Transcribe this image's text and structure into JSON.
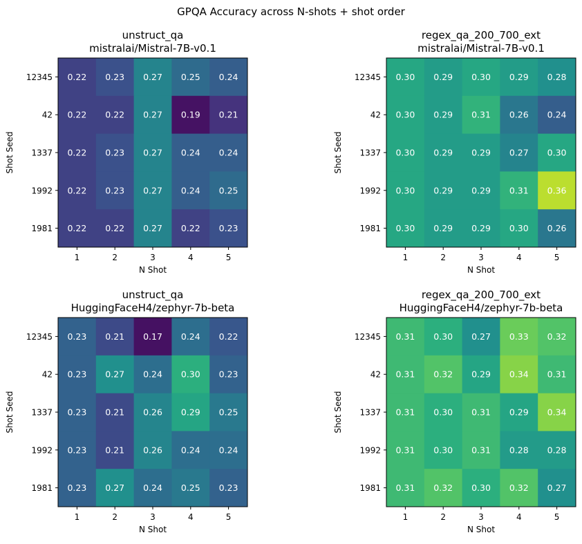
{
  "figure": {
    "title": "GPQA Accuracy across N-shots + shot order"
  },
  "colors": {
    "colormap": "viridis",
    "cell_text": "#ffffff",
    "axis": "#000000"
  },
  "chart_data": [
    {
      "type": "heatmap",
      "title_line1": "unstruct_qa",
      "title_line2": "mistralai/Mistral-7B-v0.1",
      "xlabel": "N Shot",
      "ylabel": "Shot Seed",
      "x": [
        "1",
        "2",
        "3",
        "4",
        "5"
      ],
      "y": [
        "12345",
        "42",
        "1337",
        "1992",
        "1981"
      ],
      "values": [
        [
          0.22,
          0.23,
          0.27,
          0.25,
          0.24
        ],
        [
          0.22,
          0.22,
          0.27,
          0.19,
          0.21
        ],
        [
          0.22,
          0.23,
          0.27,
          0.24,
          0.24
        ],
        [
          0.22,
          0.23,
          0.27,
          0.24,
          0.25
        ],
        [
          0.22,
          0.22,
          0.27,
          0.22,
          0.23
        ]
      ],
      "vmin": 0.18,
      "vmax": 0.38
    },
    {
      "type": "heatmap",
      "title_line1": "regex_qa_200_700_ext",
      "title_line2": "mistralai/Mistral-7B-v0.1",
      "xlabel": "N Shot",
      "ylabel": "Shot Seed",
      "x": [
        "1",
        "2",
        "3",
        "4",
        "5"
      ],
      "y": [
        "12345",
        "42",
        "1337",
        "1992",
        "1981"
      ],
      "values": [
        [
          0.3,
          0.29,
          0.3,
          0.29,
          0.28
        ],
        [
          0.3,
          0.29,
          0.31,
          0.26,
          0.24
        ],
        [
          0.3,
          0.29,
          0.29,
          0.27,
          0.3
        ],
        [
          0.3,
          0.29,
          0.29,
          0.31,
          0.36
        ],
        [
          0.3,
          0.29,
          0.29,
          0.3,
          0.26
        ]
      ],
      "vmin": 0.18,
      "vmax": 0.38
    },
    {
      "type": "heatmap",
      "title_line1": "unstruct_qa",
      "title_line2": "HuggingFaceH4/zephyr-7b-beta",
      "xlabel": "N Shot",
      "ylabel": "Shot Seed",
      "x": [
        "1",
        "2",
        "3",
        "4",
        "5"
      ],
      "y": [
        "12345",
        "42",
        "1337",
        "1992",
        "1981"
      ],
      "values": [
        [
          0.23,
          0.21,
          0.17,
          0.24,
          0.22
        ],
        [
          0.23,
          0.27,
          0.24,
          0.3,
          0.23
        ],
        [
          0.23,
          0.21,
          0.26,
          0.29,
          0.25
        ],
        [
          0.23,
          0.21,
          0.26,
          0.24,
          0.24
        ],
        [
          0.23,
          0.27,
          0.24,
          0.25,
          0.23
        ]
      ],
      "vmin": 0.16,
      "vmax": 0.38
    },
    {
      "type": "heatmap",
      "title_line1": "regex_qa_200_700_ext",
      "title_line2": "HuggingFaceH4/zephyr-7b-beta",
      "xlabel": "N Shot",
      "ylabel": "Shot Seed",
      "x": [
        "1",
        "2",
        "3",
        "4",
        "5"
      ],
      "y": [
        "12345",
        "42",
        "1337",
        "1992",
        "1981"
      ],
      "values": [
        [
          0.31,
          0.3,
          0.27,
          0.33,
          0.32
        ],
        [
          0.31,
          0.32,
          0.29,
          0.34,
          0.31
        ],
        [
          0.31,
          0.3,
          0.31,
          0.29,
          0.34
        ],
        [
          0.31,
          0.3,
          0.31,
          0.28,
          0.28
        ],
        [
          0.31,
          0.32,
          0.3,
          0.32,
          0.27
        ]
      ],
      "vmin": 0.16,
      "vmax": 0.38
    }
  ]
}
